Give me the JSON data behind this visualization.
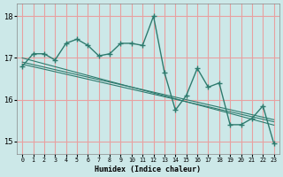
{
  "xlabel": "Humidex (Indice chaleur)",
  "bg_color": "#cce8e8",
  "grid_color_h": "#e8a0a0",
  "grid_color_v": "#e8a0a0",
  "line_color": "#2e7b6e",
  "xlim": [
    -0.5,
    23.5
  ],
  "ylim": [
    14.7,
    18.3
  ],
  "yticks": [
    15,
    16,
    17,
    18
  ],
  "xtick_labels": [
    "0",
    "1",
    "2",
    "3",
    "4",
    "5",
    "6",
    "7",
    "8",
    "9",
    "10",
    "11",
    "12",
    "13",
    "14",
    "15",
    "16",
    "17",
    "18",
    "19",
    "20",
    "21",
    "22",
    "23"
  ],
  "main_series": [
    16.8,
    17.1,
    17.1,
    16.95,
    17.35,
    17.45,
    17.3,
    17.05,
    17.1,
    17.35,
    17.35,
    17.3,
    18.0,
    16.65,
    15.75,
    16.1,
    16.75,
    16.3,
    16.4,
    15.4,
    15.4,
    15.55,
    15.85,
    14.95
  ],
  "trend1": [
    17.0,
    16.93,
    16.86,
    16.79,
    16.72,
    16.65,
    16.58,
    16.51,
    16.44,
    16.37,
    16.3,
    16.23,
    16.16,
    16.09,
    16.02,
    15.95,
    15.88,
    15.81,
    15.74,
    15.67,
    15.6,
    15.53,
    15.46,
    15.39
  ],
  "trend2": [
    16.9,
    16.84,
    16.78,
    16.72,
    16.66,
    16.6,
    16.54,
    16.48,
    16.42,
    16.36,
    16.3,
    16.24,
    16.18,
    16.12,
    16.06,
    16.0,
    15.94,
    15.88,
    15.82,
    15.76,
    15.7,
    15.64,
    15.58,
    15.52
  ],
  "trend3": [
    16.85,
    16.79,
    16.73,
    16.67,
    16.61,
    16.55,
    16.49,
    16.43,
    16.37,
    16.31,
    16.25,
    16.19,
    16.13,
    16.07,
    16.01,
    15.95,
    15.89,
    15.83,
    15.77,
    15.71,
    15.65,
    15.59,
    15.53,
    15.47
  ]
}
